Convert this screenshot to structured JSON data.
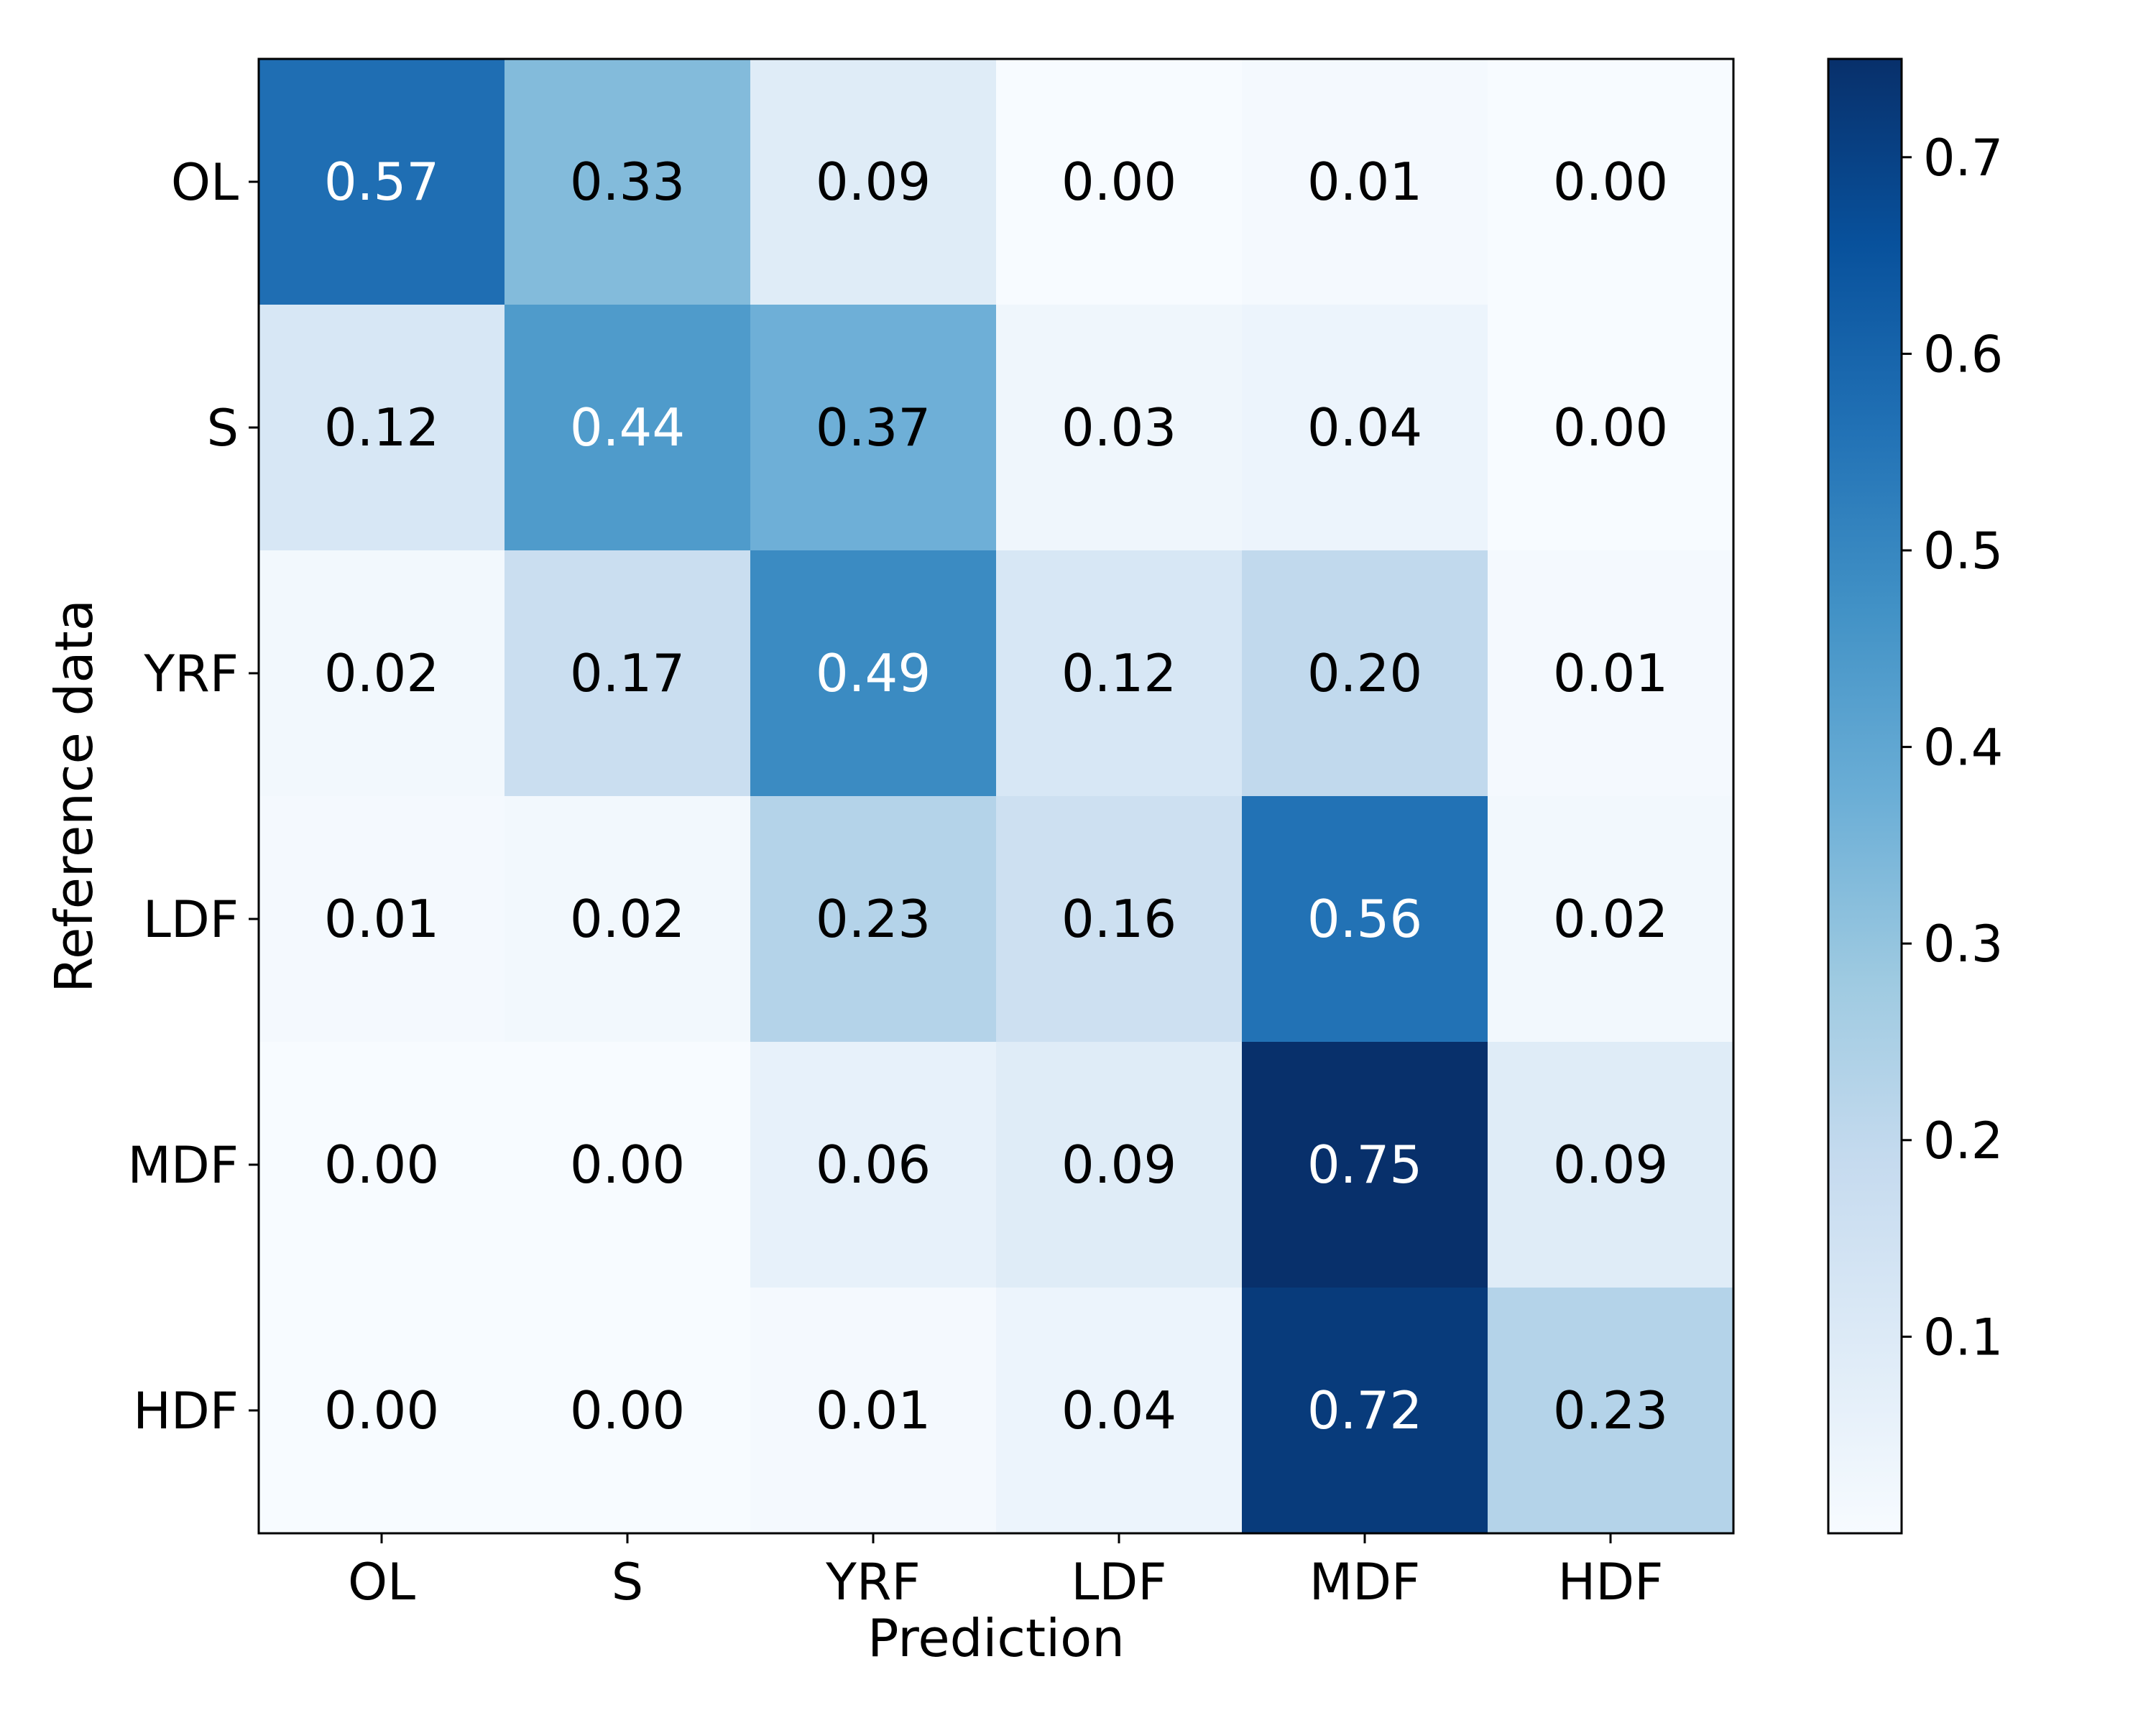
{
  "chart_data": {
    "type": "heatmap",
    "title": "",
    "xlabel": "Prediction",
    "ylabel": "Reference data",
    "x_categories": [
      "OL",
      "S",
      "YRF",
      "LDF",
      "MDF",
      "HDF"
    ],
    "y_categories": [
      "OL",
      "S",
      "YRF",
      "LDF",
      "MDF",
      "HDF"
    ],
    "values": [
      [
        0.57,
        0.33,
        0.09,
        0.0,
        0.01,
        0.0
      ],
      [
        0.12,
        0.44,
        0.37,
        0.03,
        0.04,
        0.0
      ],
      [
        0.02,
        0.17,
        0.49,
        0.12,
        0.2,
        0.01
      ],
      [
        0.01,
        0.02,
        0.23,
        0.16,
        0.56,
        0.02
      ],
      [
        0.0,
        0.0,
        0.06,
        0.09,
        0.75,
        0.09
      ],
      [
        0.0,
        0.0,
        0.01,
        0.04,
        0.72,
        0.23
      ]
    ],
    "value_format": "0.00",
    "colormap": "Blues",
    "colorscale": {
      "vmin": 0.0,
      "vmax": 0.75,
      "ticks": [
        0.1,
        0.2,
        0.3,
        0.4,
        0.5,
        0.6,
        0.7
      ],
      "tick_labels": [
        "0.1",
        "0.2",
        "0.3",
        "0.4",
        "0.5",
        "0.6",
        "0.7"
      ],
      "colorbar_position": "right"
    },
    "text_colors": {
      "dark_text": "#000000",
      "light_text": "#ffffff"
    },
    "grid": false
  }
}
